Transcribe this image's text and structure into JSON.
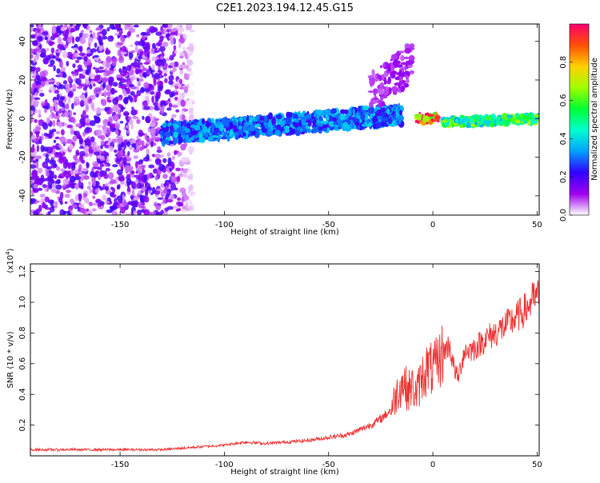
{
  "title": "C2E1.2023.194.12.45.G15",
  "chart_data": [
    {
      "type": "heatmap",
      "xlabel": "Height of straight line (km)",
      "ylabel": "Frequency (Hz)",
      "xlim": [
        -193,
        51
      ],
      "ylim": [
        -50,
        49
      ],
      "xticks": [
        -150,
        -100,
        -50,
        0,
        50
      ],
      "yticks": [
        -40,
        -20,
        0,
        20,
        40
      ],
      "grid": false,
      "colorbar": {
        "label": "Normalized spectral amplitude",
        "range": [
          0,
          1
        ],
        "ticks": [
          0.0,
          0.2,
          0.4,
          0.6,
          0.8
        ],
        "colors": [
          "#ffffff",
          "#a000f0",
          "#3000ff",
          "#00a0ff",
          "#00ffd0",
          "#00ff30",
          "#a0ff00",
          "#ffd000",
          "#ff5000",
          "#ff0070"
        ]
      },
      "regions": [
        {
          "x_range": [
            -193,
            -115
          ],
          "freq_range": [
            -50,
            49
          ],
          "amplitude": 0.05,
          "description_level": "scattered noise"
        },
        {
          "x_range": [
            -130,
            -15
          ],
          "freq_center_start": -8,
          "freq_center_end": 2,
          "amplitude": 0.35
        },
        {
          "x_range": [
            -30,
            -10
          ],
          "freq_center_start": 5,
          "freq_center_end": 22,
          "amplitude": 0.12
        },
        {
          "x_range": [
            -8,
            3
          ],
          "freq_center_start": 0,
          "freq_center_end": 0,
          "amplitude": 1.0
        },
        {
          "x_range": [
            5,
            51
          ],
          "freq_center_start": -2,
          "freq_center_end": 0,
          "amplitude": 0.6
        }
      ]
    },
    {
      "type": "line",
      "xlabel": "Height of straight line (km)",
      "ylabel": "SNR (10 * v/v)",
      "scale_label": "(x10",
      "scale_exponent": "4",
      "scale_suffix": ")",
      "xlim": [
        -193,
        51
      ],
      "ylim": [
        0,
        1.25
      ],
      "xticks": [
        -150,
        -100,
        -50,
        0,
        50
      ],
      "yticks": [
        0.2,
        0.4,
        0.6,
        0.8,
        1.0,
        1.2
      ],
      "grid": false,
      "series": [
        {
          "color": "#ee3030",
          "x": [
            -193,
            -180,
            -170,
            -160,
            -150,
            -140,
            -130,
            -120,
            -110,
            -100,
            -90,
            -80,
            -70,
            -60,
            -50,
            -45,
            -40,
            -35,
            -30,
            -25,
            -20,
            -18,
            -16,
            -14,
            -12,
            -10,
            -8,
            -5,
            -2,
            0,
            3,
            5,
            8,
            10,
            12,
            15,
            20,
            25,
            30,
            35,
            40,
            45,
            48,
            51
          ],
          "y": [
            0.04,
            0.04,
            0.04,
            0.04,
            0.04,
            0.04,
            0.04,
            0.05,
            0.06,
            0.07,
            0.09,
            0.08,
            0.09,
            0.1,
            0.12,
            0.13,
            0.14,
            0.17,
            0.2,
            0.24,
            0.3,
            0.38,
            0.45,
            0.48,
            0.42,
            0.45,
            0.4,
            0.52,
            0.58,
            0.55,
            0.62,
            0.68,
            0.72,
            0.58,
            0.5,
            0.68,
            0.7,
            0.76,
            0.8,
            0.85,
            0.9,
            0.96,
            1.02,
            1.04
          ]
        }
      ]
    }
  ]
}
